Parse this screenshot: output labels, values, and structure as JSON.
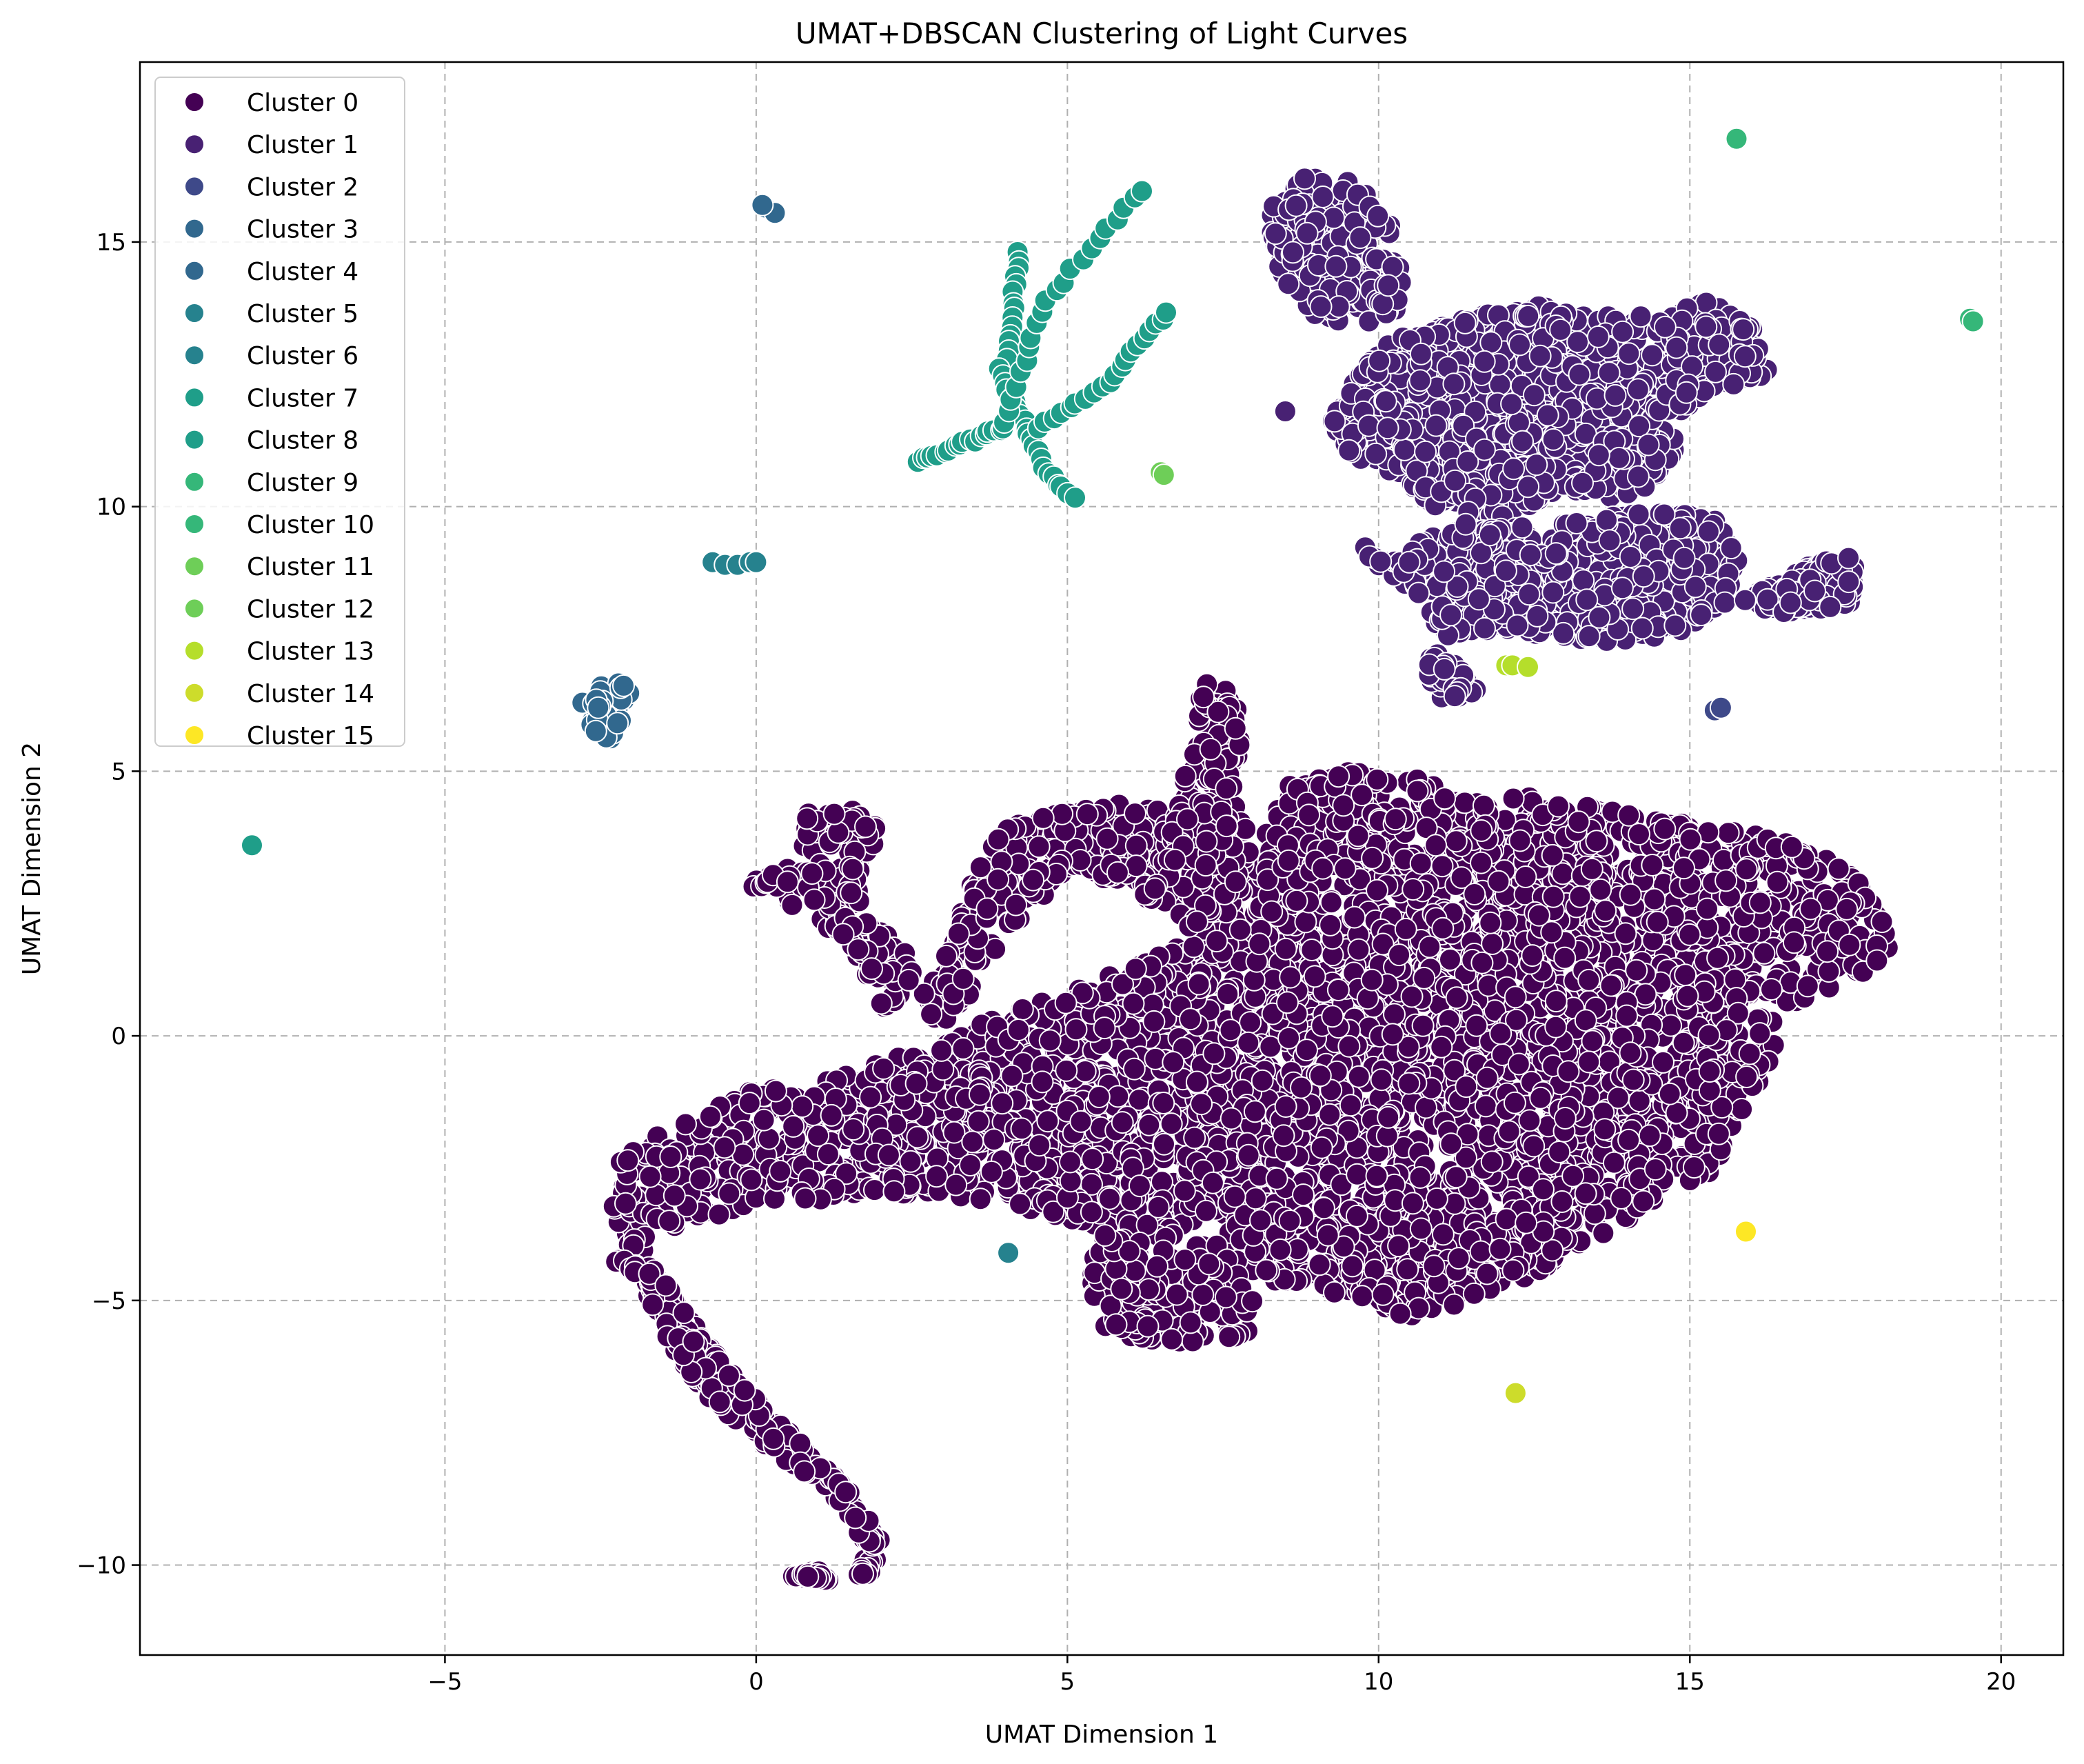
{
  "chart_data": {
    "type": "scatter",
    "title": "UMAT+DBSCAN Clustering of Light Curves",
    "xlabel": "UMAT Dimension 1",
    "ylabel": "UMAT Dimension 2",
    "xlim": [
      -9.9,
      21.0
    ],
    "ylim": [
      -11.7,
      18.4
    ],
    "xticks": [
      -5,
      0,
      5,
      10,
      15,
      20
    ],
    "yticks": [
      -10,
      -5,
      0,
      5,
      10,
      15
    ],
    "xtick_labels": [
      "−5",
      "0",
      "5",
      "10",
      "15",
      "20"
    ],
    "ytick_labels": [
      "−10",
      "−5",
      "0",
      "5",
      "10",
      "15"
    ],
    "grid": true,
    "legend_position": "top-left",
    "colormap": "viridis",
    "series": [
      {
        "name": "Cluster 0",
        "color": "#440154",
        "regions": [
          {
            "kind": "polygon",
            "count": 4200,
            "points": [
              [
                -2.4,
                -3.0
              ],
              [
                -2.3,
                -2.5
              ],
              [
                -1.8,
                -2.0
              ],
              [
                -1.0,
                -1.5
              ],
              [
                0.0,
                -1.0
              ],
              [
                1.0,
                -0.8
              ],
              [
                2.0,
                -0.5
              ],
              [
                3.0,
                0.0
              ],
              [
                4.0,
                0.4
              ],
              [
                5.0,
                0.8
              ],
              [
                6.0,
                1.3
              ],
              [
                7.0,
                1.8
              ],
              [
                8.0,
                3.2
              ],
              [
                8.5,
                4.8
              ],
              [
                9.5,
                5.0
              ],
              [
                11.0,
                4.8
              ],
              [
                12.0,
                4.6
              ],
              [
                14.0,
                4.2
              ],
              [
                15.5,
                3.9
              ],
              [
                17.0,
                3.6
              ],
              [
                18.0,
                2.6
              ],
              [
                18.3,
                1.5
              ],
              [
                17.5,
                1.0
              ],
              [
                16.6,
                0.6
              ],
              [
                16.3,
                -0.5
              ],
              [
                15.8,
                -1.5
              ],
              [
                15.4,
                -2.5
              ],
              [
                14.8,
                -3.0
              ],
              [
                13.5,
                -3.8
              ],
              [
                12.5,
                -4.5
              ],
              [
                11.5,
                -5.0
              ],
              [
                10.5,
                -5.3
              ],
              [
                9.5,
                -5.0
              ],
              [
                8.5,
                -4.7
              ],
              [
                8.0,
                -4.5
              ],
              [
                7.5,
                -4.3
              ],
              [
                6.5,
                -3.8
              ],
              [
                5.5,
                -3.6
              ],
              [
                4.5,
                -3.3
              ],
              [
                3.0,
                -3.0
              ],
              [
                2.0,
                -3.0
              ],
              [
                1.0,
                -3.1
              ],
              [
                0.0,
                -3.2
              ],
              [
                -1.0,
                -3.5
              ],
              [
                -2.0,
                -4.2
              ],
              [
                -2.2,
                -3.6
              ]
            ]
          },
          {
            "kind": "polygon",
            "count": 320,
            "points": [
              [
                -2.4,
                -4.2
              ],
              [
                -1.9,
                -4.5
              ],
              [
                -1.4,
                -5.8
              ],
              [
                -0.8,
                -6.8
              ],
              [
                0.0,
                -7.6
              ],
              [
                0.8,
                -8.3
              ],
              [
                1.4,
                -8.9
              ],
              [
                1.8,
                -9.7
              ],
              [
                1.6,
                -10.3
              ],
              [
                1.9,
                -10.1
              ],
              [
                2.0,
                -9.5
              ],
              [
                1.5,
                -8.6
              ],
              [
                0.8,
                -7.8
              ],
              [
                0.1,
                -7.0
              ],
              [
                -0.6,
                -6.1
              ],
              [
                -1.2,
                -5.1
              ],
              [
                -1.7,
                -4.3
              ]
            ]
          },
          {
            "kind": "polygon",
            "count": 140,
            "points": [
              [
                0.5,
                -10.2
              ],
              [
                1.2,
                -10.3
              ],
              [
                1.0,
                -10.1
              ]
            ]
          },
          {
            "kind": "polygon",
            "count": 380,
            "points": [
              [
                2.5,
                0.5
              ],
              [
                3.1,
                1.6
              ],
              [
                3.4,
                2.8
              ],
              [
                3.9,
                3.9
              ],
              [
                4.8,
                4.2
              ],
              [
                5.8,
                4.4
              ],
              [
                6.8,
                4.2
              ],
              [
                7.8,
                4.5
              ],
              [
                8.0,
                3.0
              ],
              [
                7.0,
                2.0
              ],
              [
                6.0,
                2.8
              ],
              [
                5.0,
                3.2
              ],
              [
                4.3,
                2.2
              ],
              [
                3.6,
                1.0
              ],
              [
                3.0,
                0.2
              ]
            ]
          },
          {
            "kind": "polygon",
            "count": 160,
            "points": [
              [
                -0.2,
                2.9
              ],
              [
                0.6,
                3.3
              ],
              [
                0.8,
                4.2
              ],
              [
                1.5,
                4.3
              ],
              [
                2.0,
                3.9
              ],
              [
                1.6,
                2.9
              ],
              [
                2.1,
                2.0
              ],
              [
                2.6,
                1.3
              ],
              [
                2.1,
                0.4
              ],
              [
                1.6,
                1.5
              ],
              [
                0.9,
                2.3
              ],
              [
                0.2,
                2.6
              ]
            ]
          },
          {
            "kind": "polygon",
            "count": 130,
            "points": [
              [
                6.5,
                3.2
              ],
              [
                6.9,
                5.0
              ],
              [
                7.1,
                6.3
              ],
              [
                7.4,
                7.1
              ],
              [
                7.8,
                6.0
              ],
              [
                7.7,
                4.5
              ],
              [
                7.4,
                3.2
              ]
            ]
          },
          {
            "kind": "polygon",
            "count": 170,
            "points": [
              [
                5.6,
                -3.7
              ],
              [
                5.3,
                -4.6
              ],
              [
                5.6,
                -5.6
              ],
              [
                6.5,
                -5.8
              ],
              [
                7.5,
                -5.8
              ],
              [
                8.1,
                -5.5
              ],
              [
                7.9,
                -4.6
              ],
              [
                7.3,
                -4.2
              ],
              [
                6.5,
                -4.0
              ]
            ]
          }
        ]
      },
      {
        "name": "Cluster 1",
        "color": "#482173",
        "regions": [
          {
            "kind": "polygon",
            "count": 260,
            "points": [
              [
                8.2,
                15.6
              ],
              [
                8.7,
                16.2
              ],
              [
                9.6,
                16.2
              ],
              [
                10.2,
                15.4
              ],
              [
                10.4,
                14.3
              ],
              [
                10.3,
                13.6
              ],
              [
                9.6,
                13.4
              ],
              [
                9.0,
                13.6
              ],
              [
                8.6,
                14.0
              ],
              [
                8.3,
                14.8
              ]
            ]
          },
          {
            "kind": "polygon",
            "count": 1100,
            "points": [
              [
                9.2,
                11.6
              ],
              [
                9.7,
                12.5
              ],
              [
                10.2,
                13.2
              ],
              [
                11.5,
                13.6
              ],
              [
                12.5,
                13.8
              ],
              [
                13.5,
                13.6
              ],
              [
                14.4,
                13.6
              ],
              [
                15.2,
                13.9
              ],
              [
                16.0,
                13.5
              ],
              [
                16.3,
                12.5
              ],
              [
                15.0,
                12.0
              ],
              [
                14.9,
                11.2
              ],
              [
                14.5,
                10.6
              ],
              [
                14.0,
                10.1
              ],
              [
                13.0,
                10.3
              ],
              [
                12.0,
                9.8
              ],
              [
                11.0,
                9.9
              ],
              [
                10.3,
                10.6
              ],
              [
                9.6,
                10.9
              ],
              [
                9.3,
                11.3
              ]
            ]
          },
          {
            "kind": "polygon",
            "count": 650,
            "points": [
              [
                9.6,
                9.4
              ],
              [
                10.2,
                9.0
              ],
              [
                11.2,
                9.7
              ],
              [
                12.5,
                9.6
              ],
              [
                13.5,
                9.8
              ],
              [
                14.5,
                9.9
              ],
              [
                15.4,
                9.8
              ],
              [
                15.8,
                9.0
              ],
              [
                15.6,
                8.2
              ],
              [
                15.0,
                7.6
              ],
              [
                14.0,
                7.4
              ],
              [
                13.0,
                7.5
              ],
              [
                12.0,
                7.7
              ],
              [
                11.0,
                7.5
              ],
              [
                10.6,
                8.4
              ],
              [
                10.0,
                8.8
              ]
            ]
          },
          {
            "kind": "polygon",
            "count": 140,
            "points": [
              [
                15.8,
                8.2
              ],
              [
                16.3,
                8.5
              ],
              [
                16.8,
                8.8
              ],
              [
                17.2,
                9.1
              ],
              [
                17.8,
                9.0
              ],
              [
                17.6,
                8.2
              ],
              [
                17.0,
                8.0
              ],
              [
                16.3,
                8.0
              ]
            ]
          },
          {
            "kind": "polygon",
            "count": 40,
            "points": [
              [
                10.8,
                7.3
              ],
              [
                11.2,
                7.1
              ],
              [
                11.6,
                6.5
              ],
              [
                11.0,
                6.3
              ],
              [
                10.8,
                6.8
              ]
            ]
          }
        ],
        "points": [
          [
            8.5,
            11.8
          ]
        ]
      },
      {
        "name": "Cluster 2",
        "color": "#3e4989",
        "points": [
          [
            15.4,
            6.15
          ],
          [
            15.5,
            6.2
          ]
        ]
      },
      {
        "name": "Cluster 3",
        "color": "#31688e",
        "points": [
          [
            0.15,
            15.65
          ],
          [
            0.3,
            15.55
          ],
          [
            0.1,
            15.7
          ]
        ]
      },
      {
        "name": "Cluster 4",
        "color": "#31688e",
        "regions": [
          {
            "kind": "polygon",
            "count": 45,
            "points": [
              [
                -2.8,
                6.3
              ],
              [
                -2.3,
                6.8
              ],
              [
                -2.0,
                6.5
              ],
              [
                -2.2,
                5.8
              ],
              [
                -2.4,
                5.5
              ],
              [
                -2.7,
                5.9
              ]
            ]
          }
        ]
      },
      {
        "name": "Cluster 5",
        "color": "#26828e",
        "points": [
          [
            4.05,
            -4.1
          ]
        ]
      },
      {
        "name": "Cluster 6",
        "color": "#26828e",
        "points": [
          [
            -0.7,
            8.95
          ],
          [
            -0.5,
            8.9
          ],
          [
            -0.3,
            8.9
          ],
          [
            -0.1,
            8.95
          ],
          [
            0.0,
            8.95
          ]
        ]
      },
      {
        "name": "Cluster 7",
        "color": "#1f9e89",
        "points": [
          [
            -8.1,
            3.6
          ]
        ]
      },
      {
        "name": "Cluster 8",
        "color": "#1f9e89",
        "regions": [
          {
            "kind": "line",
            "count": 18,
            "points": [
              [
                2.6,
                10.85
              ],
              [
                4.0,
                11.5
              ]
            ]
          },
          {
            "kind": "line",
            "count": 14,
            "points": [
              [
                4.2,
                14.8
              ],
              [
                4.05,
                12.8
              ]
            ]
          },
          {
            "kind": "line",
            "count": 22,
            "points": [
              [
                3.9,
                12.6
              ],
              [
                4.7,
                10.6
              ],
              [
                5.1,
                10.15
              ]
            ]
          },
          {
            "kind": "line",
            "count": 22,
            "points": [
              [
                4.0,
                11.6
              ],
              [
                4.6,
                13.8
              ],
              [
                6.2,
                16.0
              ]
            ]
          },
          {
            "kind": "line",
            "count": 20,
            "points": [
              [
                4.5,
                11.5
              ],
              [
                5.6,
                12.3
              ],
              [
                6.6,
                13.7
              ]
            ]
          }
        ]
      },
      {
        "name": "Cluster 9",
        "color": "#35b779",
        "points": [
          [
            15.75,
            16.95
          ]
        ]
      },
      {
        "name": "Cluster 10",
        "color": "#35b779",
        "points": [
          [
            19.5,
            13.55
          ],
          [
            19.55,
            13.5
          ]
        ]
      },
      {
        "name": "Cluster 11",
        "color": "#6ece58",
        "points": [
          [
            6.5,
            10.65
          ],
          [
            6.55,
            10.6
          ]
        ]
      },
      {
        "name": "Cluster 12",
        "color": "#6ece58",
        "points": []
      },
      {
        "name": "Cluster 13",
        "color": "#b5de2b",
        "points": [
          [
            12.05,
            7.0
          ],
          [
            12.15,
            7.0
          ],
          [
            12.4,
            6.97
          ]
        ]
      },
      {
        "name": "Cluster 14",
        "color": "#cddc2b",
        "points": [
          [
            12.2,
            -6.75
          ]
        ]
      },
      {
        "name": "Cluster 15",
        "color": "#fde725",
        "points": [
          [
            15.9,
            -3.7
          ]
        ]
      }
    ]
  }
}
